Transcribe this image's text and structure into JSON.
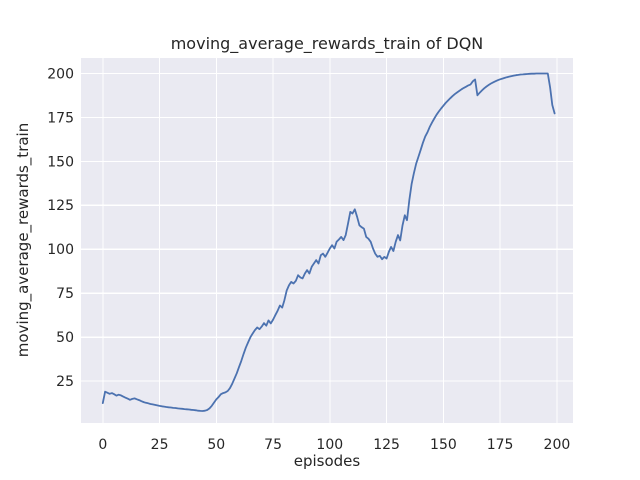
{
  "chart_data": {
    "type": "line",
    "title": "moving_average_rewards_train of DQN",
    "xlabel": "episodes",
    "ylabel": "moving_average_rewards_train",
    "x_ticks": [
      0,
      25,
      50,
      75,
      100,
      125,
      150,
      175,
      200
    ],
    "y_ticks": [
      25,
      50,
      75,
      100,
      125,
      150,
      175,
      200
    ],
    "xlim": [
      -9.6,
      207.1
    ],
    "ylim": [
      1.2,
      208.7
    ],
    "grid": true,
    "legend_position": "none",
    "style": {
      "line_color": "#4c72b0",
      "plot_bg": "#eaeaf2",
      "grid_color": "#ffffff",
      "fig_bg": "#ffffff",
      "text_color": "#262626"
    },
    "series": [
      {
        "name": "moving_average_rewards_train",
        "x": [
          0,
          1,
          2,
          3,
          4,
          5,
          6,
          7,
          8,
          9,
          10,
          11,
          12,
          13,
          14,
          15,
          16,
          17,
          18,
          19,
          20,
          21,
          22,
          23,
          24,
          25,
          26,
          27,
          28,
          29,
          30,
          31,
          32,
          33,
          34,
          35,
          36,
          37,
          38,
          39,
          40,
          41,
          42,
          43,
          44,
          45,
          46,
          47,
          48,
          49,
          50,
          51,
          52,
          53,
          54,
          55,
          56,
          57,
          58,
          59,
          60,
          61,
          62,
          63,
          64,
          65,
          66,
          67,
          68,
          69,
          70,
          71,
          72,
          73,
          74,
          75,
          76,
          77,
          78,
          79,
          80,
          81,
          82,
          83,
          84,
          85,
          86,
          87,
          88,
          89,
          90,
          91,
          92,
          93,
          94,
          95,
          96,
          97,
          98,
          99,
          100,
          101,
          102,
          103,
          104,
          105,
          106,
          107,
          108,
          109,
          110,
          111,
          112,
          113,
          114,
          115,
          116,
          117,
          118,
          119,
          120,
          121,
          122,
          123,
          124,
          125,
          126,
          127,
          128,
          129,
          130,
          131,
          132,
          133,
          134,
          135,
          136,
          137,
          138,
          139,
          140,
          141,
          142,
          143,
          144,
          145,
          146,
          147,
          148,
          149,
          150,
          151,
          152,
          153,
          154,
          155,
          156,
          157,
          158,
          159,
          160,
          161,
          162,
          163,
          164,
          165,
          166,
          167,
          168,
          169,
          170,
          171,
          172,
          173,
          174,
          175,
          176,
          177,
          178,
          179,
          180,
          181,
          182,
          183,
          184,
          185,
          186,
          187,
          188,
          189,
          190,
          191,
          192,
          193,
          194,
          195,
          196,
          197,
          198,
          199
        ],
        "y": [
          12.5,
          19.0,
          18.4,
          17.8,
          18.2,
          17.6,
          16.8,
          17.3,
          16.9,
          16.2,
          15.6,
          15.0,
          14.4,
          14.9,
          15.2,
          14.7,
          14.2,
          13.6,
          13.1,
          12.7,
          12.4,
          12.0,
          11.8,
          11.5,
          11.2,
          10.9,
          10.7,
          10.5,
          10.3,
          10.1,
          10.0,
          9.8,
          9.7,
          9.5,
          9.4,
          9.3,
          9.1,
          9.0,
          8.9,
          8.7,
          8.6,
          8.4,
          8.2,
          8.1,
          8.0,
          8.2,
          8.6,
          9.5,
          11.0,
          12.8,
          14.6,
          16.0,
          17.6,
          18.2,
          18.6,
          19.4,
          21.0,
          23.5,
          26.5,
          29.5,
          33.0,
          36.5,
          40.5,
          44.0,
          47.0,
          50.0,
          52.0,
          54.0,
          55.5,
          54.5,
          56.0,
          58.0,
          56.5,
          59.5,
          57.8,
          60.0,
          62.5,
          65.0,
          68.0,
          66.8,
          71.0,
          76.5,
          79.5,
          81.4,
          80.5,
          82.0,
          85.2,
          84.0,
          83.4,
          86.2,
          88.1,
          86.2,
          90.0,
          91.9,
          93.8,
          91.9,
          96.6,
          97.5,
          95.7,
          98.0,
          100.4,
          102.3,
          100.4,
          104.2,
          105.5,
          107.0,
          105.2,
          108.0,
          114.5,
          121.2,
          120.3,
          122.7,
          118.4,
          113.6,
          112.5,
          111.7,
          107.0,
          106.0,
          104.2,
          100.4,
          97.5,
          95.7,
          96.2,
          94.3,
          95.6,
          94.7,
          98.5,
          101.3,
          99.0,
          104.2,
          108.0,
          105.0,
          113.5,
          119.3,
          116.5,
          127.8,
          137.0,
          143.0,
          148.5,
          152.5,
          156.5,
          160.5,
          164.0,
          166.5,
          169.5,
          172.0,
          174.3,
          176.4,
          178.3,
          180.0,
          181.6,
          183.1,
          184.5,
          185.8,
          187.0,
          188.1,
          189.1,
          190.0,
          190.9,
          191.7,
          192.4,
          193.1,
          193.7,
          195.5,
          196.5,
          187.5,
          189.0,
          190.3,
          191.5,
          192.5,
          193.4,
          194.2,
          194.9,
          195.5,
          196.1,
          196.6,
          197.0,
          197.4,
          197.8,
          198.1,
          198.4,
          198.7,
          198.9,
          199.1,
          199.3,
          199.4,
          199.5,
          199.6,
          199.7,
          199.8,
          199.8,
          199.9,
          199.9,
          199.9,
          199.9,
          199.9,
          199.9,
          192.0,
          182.0,
          177.2
        ]
      }
    ]
  }
}
